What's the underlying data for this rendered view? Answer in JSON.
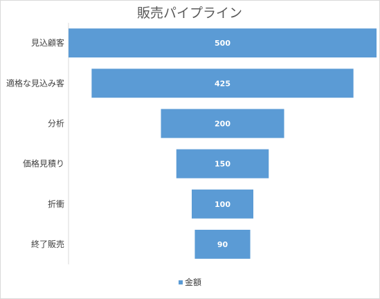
{
  "chart_data": {
    "type": "bar",
    "subtype": "funnel",
    "title": "販売パイプライン",
    "categories": [
      "見込顧客",
      "適格な見込み客",
      "分析",
      "価格見積り",
      "折衝",
      "終了販売"
    ],
    "series": [
      {
        "name": "金額",
        "values": [
          500,
          425,
          200,
          150,
          100,
          90
        ],
        "color": "#5b9bd5"
      }
    ],
    "data_labels": true,
    "grid": false,
    "legend_position": "bottom"
  }
}
